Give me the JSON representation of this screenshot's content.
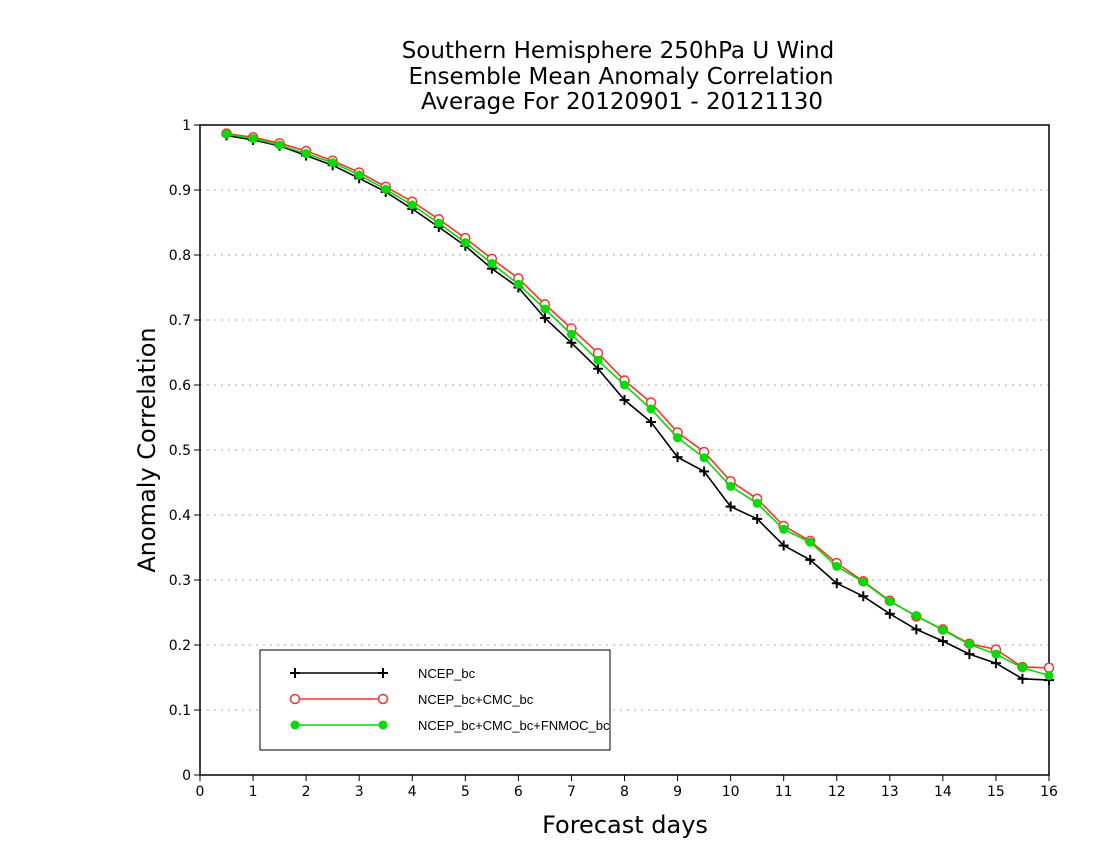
{
  "chart_data": {
    "type": "line",
    "title": [
      "Southern Hemisphere 250hPa U Wind",
      "Ensemble Mean Anomaly Correlation",
      "Average For 20120901 - 20121130"
    ],
    "xlabel": "Forecast days",
    "ylabel": "Anomaly Correlation",
    "xlim": [
      0,
      16
    ],
    "ylim": [
      0,
      1
    ],
    "x_ticks": [
      "0",
      "1",
      "2",
      "3",
      "4",
      "5",
      "6",
      "7",
      "8",
      "9",
      "10",
      "11",
      "12",
      "13",
      "14",
      "15",
      "16"
    ],
    "y_ticks": [
      "0",
      "0.1",
      "0.2",
      "0.3",
      "0.4",
      "0.5",
      "0.6",
      "0.7",
      "0.8",
      "0.9",
      "1"
    ],
    "grid": "horizontal dotted",
    "legend_position": "bottom-left",
    "x": [
      0.5,
      1,
      1.5,
      2,
      2.5,
      3,
      3.5,
      4,
      4.5,
      5,
      5.5,
      6,
      6.5,
      7,
      7.5,
      8,
      8.5,
      9,
      9.5,
      10,
      10.5,
      11,
      11.5,
      12,
      12.5,
      13,
      13.5,
      14,
      14.5,
      15,
      15.5,
      16
    ],
    "series": [
      {
        "name": "NCEP_bc",
        "color": "#000000",
        "marker": "plus",
        "values": [
          0.984,
          0.977,
          0.968,
          0.953,
          0.938,
          0.918,
          0.897,
          0.871,
          0.843,
          0.814,
          0.779,
          0.75,
          0.703,
          0.665,
          0.625,
          0.577,
          0.543,
          0.489,
          0.467,
          0.413,
          0.394,
          0.353,
          0.331,
          0.295,
          0.275,
          0.248,
          0.224,
          0.206,
          0.186,
          0.172,
          0.148,
          0.146
        ]
      },
      {
        "name": "NCEP_bc+CMC_bc",
        "color": "#ff3030",
        "marker": "open-circle",
        "values": [
          0.987,
          0.981,
          0.972,
          0.96,
          0.945,
          0.927,
          0.905,
          0.882,
          0.855,
          0.826,
          0.794,
          0.764,
          0.724,
          0.687,
          0.649,
          0.607,
          0.573,
          0.527,
          0.497,
          0.452,
          0.425,
          0.383,
          0.36,
          0.326,
          0.298,
          0.268,
          0.244,
          0.224,
          0.202,
          0.193,
          0.166,
          0.165
        ]
      },
      {
        "name": "NCEP_bc+CMC_bc+FNMOC_bc",
        "color": "#00dd00",
        "marker": "filled-circle",
        "values": [
          0.986,
          0.979,
          0.969,
          0.956,
          0.942,
          0.923,
          0.901,
          0.877,
          0.849,
          0.819,
          0.787,
          0.755,
          0.717,
          0.678,
          0.638,
          0.6,
          0.563,
          0.519,
          0.488,
          0.444,
          0.418,
          0.378,
          0.358,
          0.321,
          0.297,
          0.267,
          0.245,
          0.223,
          0.201,
          0.186,
          0.165,
          0.153
        ]
      }
    ]
  }
}
